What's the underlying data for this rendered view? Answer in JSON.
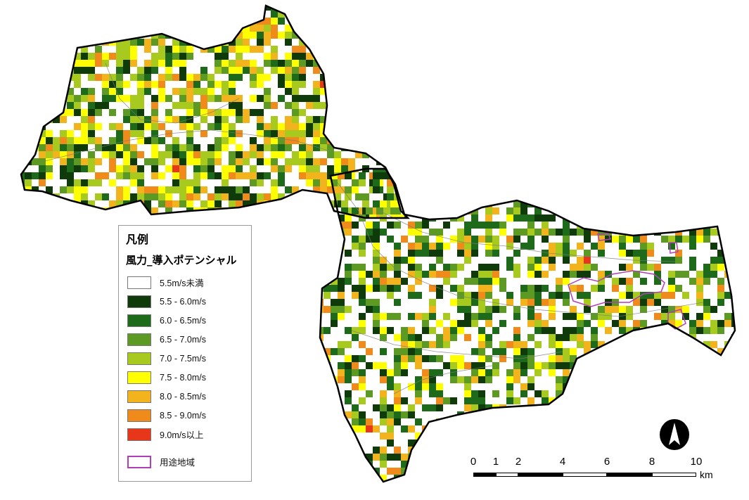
{
  "legend": {
    "title": "凡例",
    "subtitle": "風力_導入ポテンシャル",
    "items": [
      {
        "label": "5.5m/s未満",
        "color": "#ffffff"
      },
      {
        "label": "5.5 - 6.0m/s",
        "color": "#0f3b0a"
      },
      {
        "label": "6.0 - 6.5m/s",
        "color": "#1d6b1a"
      },
      {
        "label": "6.5 - 7.0m/s",
        "color": "#5c9a24"
      },
      {
        "label": "7.0 - 7.5m/s",
        "color": "#a8c91e"
      },
      {
        "label": "7.5 - 8.0m/s",
        "color": "#ffff00"
      },
      {
        "label": "8.0 - 8.5m/s",
        "color": "#f3b31c"
      },
      {
        "label": "8.5 - 9.0m/s",
        "color": "#ef8a1b"
      },
      {
        "label": "9.0m/s以上",
        "color": "#e8361a"
      }
    ],
    "zoning": {
      "label": "用途地域",
      "color": "#b03fb7"
    }
  },
  "scale": {
    "ticks": [
      "0",
      "1",
      "2",
      "4",
      "6",
      "8",
      "10"
    ],
    "unit": "km"
  },
  "north_arrow_icon": "north-arrow-icon",
  "boundary_color": "#000000"
}
